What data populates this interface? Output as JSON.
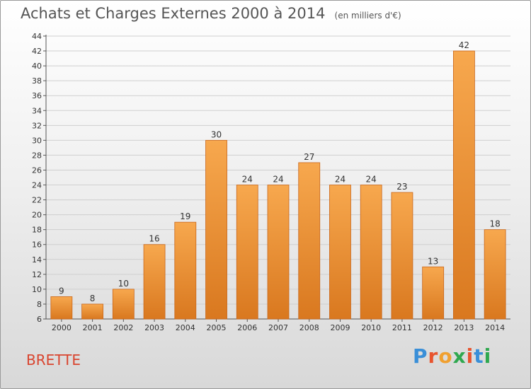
{
  "header": {
    "title": "Achats et Charges Externes 2000 à 2014",
    "subtitle": "(en milliers d'€)"
  },
  "footer": {
    "place": "BRETTE",
    "brand": "Proxiti",
    "brand_colors": [
      "#3a8fd8",
      "#e8542e",
      "#f0a030",
      "#2fa84f",
      "#e8542e",
      "#3a8fd8",
      "#2fa84f"
    ]
  },
  "colors": {
    "bar_top": "#f7a84e",
    "bar_bottom": "#d9781f",
    "bar_edge": "#c9661a",
    "grid": "#cfcfcf"
  },
  "chart_data": {
    "type": "bar",
    "title": "Achats et Charges Externes 2000 à 2014",
    "subtitle": "(en milliers d'€)",
    "categories": [
      "2000",
      "2001",
      "2002",
      "2003",
      "2004",
      "2005",
      "2006",
      "2007",
      "2008",
      "2009",
      "2010",
      "2011",
      "2012",
      "2013",
      "2014"
    ],
    "values": [
      9,
      8,
      10,
      16,
      19,
      30,
      24,
      24,
      27,
      24,
      24,
      23,
      13,
      42,
      18
    ],
    "ylim": [
      6,
      44
    ],
    "ytick_step": 2,
    "grid": true,
    "xlabel": "",
    "ylabel": ""
  }
}
